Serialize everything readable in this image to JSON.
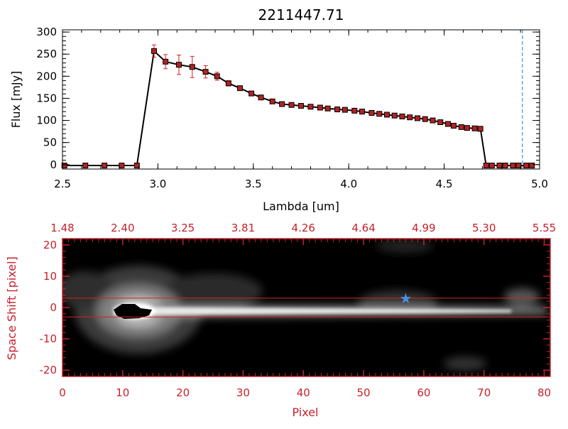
{
  "chart_data": [
    {
      "type": "line",
      "title": "2211447.71",
      "xlabel": "Lambda [um]",
      "ylabel": "Flux [mJy]",
      "xlim": [
        2.5,
        5.0
      ],
      "ylim": [
        -10,
        305
      ],
      "xticks": [
        {
          "v": 2.5,
          "label": "2.5"
        },
        {
          "v": 3.0,
          "label": "3.0"
        },
        {
          "v": 3.5,
          "label": "3.5"
        },
        {
          "v": 4.0,
          "label": "4.0"
        },
        {
          "v": 4.5,
          "label": "4.5"
        },
        {
          "v": 5.0,
          "label": "5.0"
        }
      ],
      "yticks": [
        {
          "v": 0,
          "label": "0"
        },
        {
          "v": 50,
          "label": "50"
        },
        {
          "v": 100,
          "label": "100"
        },
        {
          "v": 150,
          "label": "150"
        },
        {
          "v": 200,
          "label": "200"
        },
        {
          "v": 250,
          "label": "250"
        },
        {
          "v": 300,
          "label": "300"
        }
      ],
      "vline": 4.91,
      "colors": {
        "line": "#000000",
        "marker": "#b22222",
        "error": "#d62020",
        "vline": "#1f77d4"
      },
      "points": [
        {
          "x": 2.51,
          "y": -2,
          "e": 0
        },
        {
          "x": 2.62,
          "y": -2,
          "e": 0
        },
        {
          "x": 2.72,
          "y": -2,
          "e": 0
        },
        {
          "x": 2.81,
          "y": -2,
          "e": 0
        },
        {
          "x": 2.89,
          "y": -2,
          "e": 0
        },
        {
          "x": 2.98,
          "y": 257,
          "e": 14
        },
        {
          "x": 3.04,
          "y": 233,
          "e": 16
        },
        {
          "x": 3.11,
          "y": 226,
          "e": 22
        },
        {
          "x": 3.18,
          "y": 221,
          "e": 24
        },
        {
          "x": 3.25,
          "y": 210,
          "e": 14
        },
        {
          "x": 3.31,
          "y": 200,
          "e": 9
        },
        {
          "x": 3.37,
          "y": 184,
          "e": 6
        },
        {
          "x": 3.43,
          "y": 173,
          "e": 4
        },
        {
          "x": 3.49,
          "y": 161,
          "e": 3
        },
        {
          "x": 3.54,
          "y": 152,
          "e": 3
        },
        {
          "x": 3.6,
          "y": 143,
          "e": 2
        },
        {
          "x": 3.65,
          "y": 137,
          "e": 2
        },
        {
          "x": 3.7,
          "y": 135,
          "e": 2
        },
        {
          "x": 3.75,
          "y": 133,
          "e": 2
        },
        {
          "x": 3.8,
          "y": 131,
          "e": 2
        },
        {
          "x": 3.85,
          "y": 129,
          "e": 2
        },
        {
          "x": 3.89,
          "y": 127,
          "e": 2
        },
        {
          "x": 3.94,
          "y": 125,
          "e": 2
        },
        {
          "x": 3.98,
          "y": 124,
          "e": 2
        },
        {
          "x": 4.03,
          "y": 122,
          "e": 2
        },
        {
          "x": 4.07,
          "y": 120,
          "e": 2
        },
        {
          "x": 4.12,
          "y": 117,
          "e": 2
        },
        {
          "x": 4.16,
          "y": 115,
          "e": 2
        },
        {
          "x": 4.2,
          "y": 113,
          "e": 2
        },
        {
          "x": 4.24,
          "y": 111,
          "e": 2
        },
        {
          "x": 4.28,
          "y": 109,
          "e": 2
        },
        {
          "x": 4.32,
          "y": 107,
          "e": 2
        },
        {
          "x": 4.36,
          "y": 105,
          "e": 2
        },
        {
          "x": 4.4,
          "y": 103,
          "e": 2
        },
        {
          "x": 4.44,
          "y": 100,
          "e": 2
        },
        {
          "x": 4.48,
          "y": 96,
          "e": 2
        },
        {
          "x": 4.52,
          "y": 92,
          "e": 2
        },
        {
          "x": 4.55,
          "y": 88,
          "e": 2
        },
        {
          "x": 4.59,
          "y": 85,
          "e": 2
        },
        {
          "x": 4.62,
          "y": 83,
          "e": 2
        },
        {
          "x": 4.66,
          "y": 82,
          "e": 2
        },
        {
          "x": 4.69,
          "y": 81,
          "e": 2
        },
        {
          "x": 4.72,
          "y": -2,
          "e": 0
        },
        {
          "x": 4.75,
          "y": -2,
          "e": 0
        },
        {
          "x": 4.79,
          "y": -2,
          "e": 0
        },
        {
          "x": 4.82,
          "y": -2,
          "e": 0
        },
        {
          "x": 4.86,
          "y": -2,
          "e": 0
        },
        {
          "x": 4.89,
          "y": -2,
          "e": 0
        },
        {
          "x": 4.93,
          "y": -2,
          "e": 0
        },
        {
          "x": 4.96,
          "y": -2,
          "e": 0
        }
      ]
    },
    {
      "type": "heatmap",
      "xlabel": "Pixel",
      "ylabel": "Space Shift [pixel]",
      "xlim": [
        0,
        81
      ],
      "ylim": [
        -22,
        22
      ],
      "xticks": [
        {
          "v": 0,
          "label": "0"
        },
        {
          "v": 10,
          "label": "10"
        },
        {
          "v": 20,
          "label": "20"
        },
        {
          "v": 30,
          "label": "30"
        },
        {
          "v": 40,
          "label": "40"
        },
        {
          "v": 50,
          "label": "50"
        },
        {
          "v": 60,
          "label": "60"
        },
        {
          "v": 70,
          "label": "70"
        },
        {
          "v": 80,
          "label": "80"
        }
      ],
      "yticks": [
        {
          "v": -20,
          "label": "-20"
        },
        {
          "v": -10,
          "label": "-10"
        },
        {
          "v": 0,
          "label": "0"
        },
        {
          "v": 10,
          "label": "10"
        },
        {
          "v": 20,
          "label": "20"
        }
      ],
      "top_ticks": [
        {
          "v": 0,
          "label": "1.48"
        },
        {
          "v": 10,
          "label": "2.40"
        },
        {
          "v": 20,
          "label": "3.25"
        },
        {
          "v": 30,
          "label": "3.81"
        },
        {
          "v": 40,
          "label": "4.26"
        },
        {
          "v": 50,
          "label": "4.64"
        },
        {
          "v": 60,
          "label": "4.99"
        },
        {
          "v": 70,
          "label": "5.30"
        },
        {
          "v": 80,
          "label": "5.55"
        }
      ],
      "aperture": [
        -3,
        3
      ],
      "star": {
        "x": 57,
        "y": 3
      },
      "colors": {
        "axis": "#c8202a",
        "aperture": "#d62020",
        "star": "#4a90e2"
      }
    }
  ]
}
